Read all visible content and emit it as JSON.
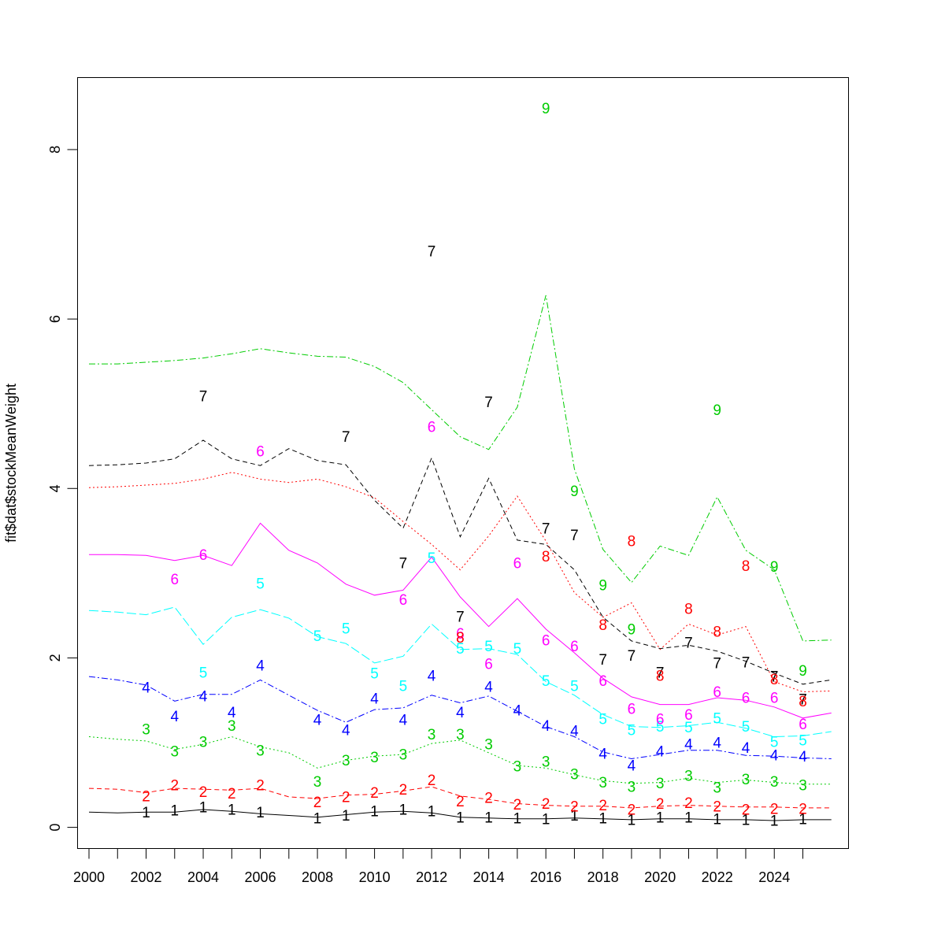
{
  "chart_data": {
    "type": "line",
    "title": "",
    "xlabel": "",
    "ylabel": "fit$dat$stockMeanWeight",
    "xlim": [
      1999.6,
      2026.6
    ],
    "ylim": [
      -0.25,
      8.85
    ],
    "x_ticks": [
      2000,
      2001,
      2002,
      2003,
      2004,
      2005,
      2006,
      2007,
      2008,
      2009,
      2010,
      2011,
      2012,
      2013,
      2014,
      2015,
      2016,
      2017,
      2018,
      2019,
      2020,
      2021,
      2022,
      2023,
      2024,
      2025
    ],
    "x_tick_labels": [
      2000,
      2002,
      2004,
      2006,
      2008,
      2010,
      2012,
      2014,
      2016,
      2018,
      2020,
      2022,
      2024
    ],
    "y_ticks": [
      0,
      2,
      4,
      6,
      8
    ],
    "grid": false,
    "legend": "none",
    "line_years": [
      2000,
      2001,
      2002,
      2003,
      2004,
      2005,
      2006,
      2007,
      2008,
      2009,
      2010,
      2011,
      2012,
      2013,
      2014,
      2015,
      2016,
      2017,
      2018,
      2019,
      2020,
      2021,
      2022,
      2023,
      2024,
      2025,
      2026
    ],
    "point_years": [
      2002,
      2003,
      2004,
      2005,
      2006,
      2008,
      2009,
      2010,
      2011,
      2012,
      2013,
      2014,
      2015,
      2016,
      2017,
      2018,
      2019,
      2020,
      2021,
      2022,
      2023,
      2024,
      2025
    ],
    "series": [
      {
        "label": "1",
        "color": "#000000",
        "dash": "",
        "line": [
          0.18,
          0.17,
          0.18,
          0.18,
          0.21,
          0.19,
          0.16,
          0.14,
          0.12,
          0.15,
          0.18,
          0.19,
          0.17,
          0.12,
          0.11,
          0.1,
          0.1,
          0.11,
          0.1,
          0.09,
          0.1,
          0.1,
          0.09,
          0.09,
          0.08,
          0.09,
          0.09
        ],
        "points": [
          0.17,
          0.19,
          0.23,
          0.2,
          0.17,
          0.1,
          0.13,
          0.18,
          0.2,
          0.18,
          0.11,
          0.11,
          0.1,
          0.09,
          0.13,
          0.1,
          0.08,
          0.11,
          0.11,
          0.09,
          0.08,
          0.07,
          0.09
        ]
      },
      {
        "label": "2",
        "color": "#ff0000",
        "dash": "6,4",
        "line": [
          0.46,
          0.45,
          0.41,
          0.46,
          0.45,
          0.44,
          0.46,
          0.36,
          0.34,
          0.38,
          0.39,
          0.43,
          0.48,
          0.37,
          0.33,
          0.28,
          0.26,
          0.25,
          0.25,
          0.23,
          0.25,
          0.26,
          0.25,
          0.24,
          0.24,
          0.23,
          0.23
        ],
        "points": [
          0.36,
          0.49,
          0.41,
          0.39,
          0.49,
          0.29,
          0.35,
          0.4,
          0.44,
          0.55,
          0.3,
          0.34,
          0.26,
          0.27,
          0.24,
          0.25,
          0.2,
          0.27,
          0.28,
          0.24,
          0.2,
          0.21,
          0.21
        ]
      },
      {
        "label": "3",
        "color": "#00cc00",
        "dash": "2,3",
        "line": [
          1.07,
          1.04,
          1.02,
          0.92,
          0.98,
          1.07,
          0.95,
          0.88,
          0.7,
          0.79,
          0.84,
          0.86,
          0.99,
          1.03,
          0.88,
          0.73,
          0.7,
          0.62,
          0.55,
          0.52,
          0.53,
          0.58,
          0.53,
          0.56,
          0.53,
          0.51,
          0.51
        ],
        "points": [
          1.15,
          0.89,
          1.0,
          1.19,
          0.9,
          0.53,
          0.78,
          0.82,
          0.85,
          1.09,
          1.09,
          0.97,
          0.71,
          0.77,
          0.62,
          0.52,
          0.47,
          0.51,
          0.6,
          0.46,
          0.56,
          0.53,
          0.49
        ]
      },
      {
        "label": "4",
        "color": "#0000ff",
        "dash": "8,3,2,3",
        "line": [
          1.78,
          1.74,
          1.68,
          1.49,
          1.57,
          1.57,
          1.74,
          1.56,
          1.38,
          1.24,
          1.39,
          1.41,
          1.56,
          1.47,
          1.55,
          1.37,
          1.19,
          1.07,
          0.89,
          0.81,
          0.86,
          0.91,
          0.91,
          0.85,
          0.84,
          0.82,
          0.81
        ],
        "points": [
          1.64,
          1.3,
          1.54,
          1.35,
          1.9,
          1.26,
          1.14,
          1.51,
          1.26,
          1.78,
          1.35,
          1.65,
          1.37,
          1.19,
          1.13,
          0.86,
          0.72,
          0.89,
          0.97,
          0.99,
          0.93,
          0.84,
          0.83
        ]
      },
      {
        "label": "5",
        "color": "#00ffff",
        "dash": "12,4",
        "line": [
          2.56,
          2.54,
          2.51,
          2.6,
          2.16,
          2.48,
          2.57,
          2.47,
          2.25,
          2.17,
          1.94,
          2.02,
          2.4,
          2.1,
          2.11,
          2.04,
          1.72,
          1.56,
          1.33,
          1.19,
          1.18,
          1.2,
          1.24,
          1.17,
          1.07,
          1.08,
          1.13
        ],
        "points": [
          null,
          null,
          1.82,
          null,
          2.87,
          2.25,
          2.34,
          1.81,
          1.66,
          3.17,
          2.1,
          2.13,
          2.1,
          1.72,
          1.66,
          1.27,
          1.14,
          1.18,
          1.17,
          1.28,
          1.18,
          1.0,
          1.02
        ]
      },
      {
        "label": "6",
        "color": "#ff00ff",
        "dash": "",
        "line": [
          3.22,
          3.22,
          3.21,
          3.15,
          3.21,
          3.09,
          3.59,
          3.27,
          3.12,
          2.87,
          2.74,
          2.8,
          3.19,
          2.72,
          2.37,
          2.7,
          2.34,
          2.06,
          1.76,
          1.54,
          1.45,
          1.45,
          1.53,
          1.5,
          1.42,
          1.29,
          1.35
        ],
        "points": [
          null,
          2.92,
          3.21,
          null,
          4.43,
          null,
          null,
          null,
          2.68,
          4.72,
          2.28,
          1.92,
          3.11,
          2.2,
          2.13,
          1.72,
          1.39,
          1.27,
          1.32,
          1.59,
          1.52,
          1.52,
          1.21
        ]
      },
      {
        "label": "7",
        "color": "#000000",
        "dash": "6,4",
        "line": [
          4.27,
          4.28,
          4.3,
          4.35,
          4.57,
          4.35,
          4.27,
          4.47,
          4.33,
          4.28,
          3.86,
          3.53,
          4.36,
          3.43,
          4.12,
          3.39,
          3.34,
          3.04,
          2.48,
          2.2,
          2.11,
          2.15,
          2.08,
          1.96,
          1.82,
          1.69,
          1.74
        ],
        "points": [
          null,
          null,
          5.08,
          null,
          null,
          null,
          4.6,
          null,
          3.11,
          6.79,
          2.48,
          5.01,
          null,
          3.52,
          3.44,
          1.97,
          2.02,
          1.82,
          2.17,
          1.93,
          1.94,
          1.77,
          1.5
        ]
      },
      {
        "label": "8",
        "color": "#ff0000",
        "dash": "2,3",
        "line": [
          4.01,
          4.02,
          4.04,
          4.06,
          4.11,
          4.19,
          4.11,
          4.07,
          4.11,
          4.02,
          3.89,
          3.61,
          3.34,
          3.04,
          3.44,
          3.91,
          3.38,
          2.77,
          2.48,
          2.65,
          2.1,
          2.4,
          2.27,
          2.37,
          1.72,
          1.6,
          1.61
        ],
        "points": [
          null,
          null,
          null,
          null,
          null,
          null,
          null,
          null,
          null,
          null,
          2.23,
          null,
          null,
          3.19,
          null,
          2.38,
          3.37,
          1.78,
          2.57,
          2.3,
          3.08,
          1.74,
          1.48
        ]
      },
      {
        "label": "9",
        "color": "#00cc00",
        "dash": "8,3,2,3",
        "line": [
          5.47,
          5.47,
          5.49,
          5.51,
          5.54,
          5.59,
          5.65,
          5.6,
          5.56,
          5.55,
          5.44,
          5.25,
          4.93,
          4.61,
          4.46,
          4.96,
          6.28,
          4.23,
          3.28,
          2.89,
          3.32,
          3.21,
          3.9,
          3.27,
          3.04,
          2.2,
          2.21
        ],
        "points": [
          null,
          null,
          null,
          null,
          null,
          null,
          null,
          null,
          null,
          null,
          null,
          null,
          null,
          8.48,
          3.96,
          2.85,
          2.33,
          null,
          null,
          4.92,
          null,
          3.07,
          1.84
        ]
      }
    ]
  }
}
